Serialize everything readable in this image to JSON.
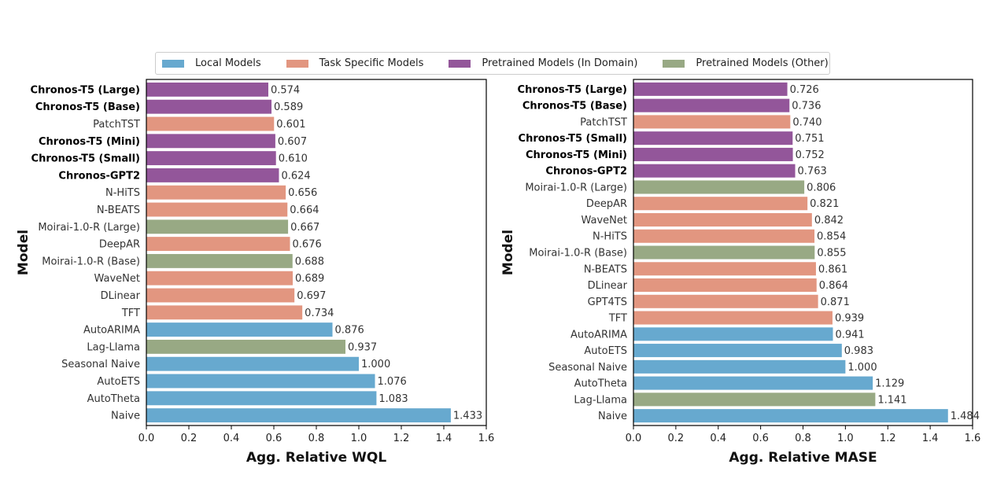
{
  "legend": [
    {
      "label": "Local Models",
      "color": "#67a9cf"
    },
    {
      "label": "Task Specific Models",
      "color": "#e29680"
    },
    {
      "label": "Pretrained Models (In Domain)",
      "color": "#93569a"
    },
    {
      "label": "Pretrained Models (Other)",
      "color": "#98a984"
    }
  ],
  "chart_data": [
    {
      "type": "bar",
      "orientation": "horizontal",
      "xlabel": "Agg. Relative WQL",
      "ylabel": "Model",
      "xlim": [
        0,
        1.6
      ],
      "xticks": [
        "0.0",
        "0.2",
        "0.4",
        "0.6",
        "0.8",
        "1.0",
        "1.2",
        "1.4",
        "1.6"
      ],
      "grid": false,
      "legend_position": "top",
      "categories": [
        "Chronos-T5 (Large)",
        "Chronos-T5 (Base)",
        "PatchTST",
        "Chronos-T5 (Mini)",
        "Chronos-T5 (Small)",
        "Chronos-GPT2",
        "N-HiTS",
        "N-BEATS",
        "Moirai-1.0-R (Large)",
        "DeepAR",
        "Moirai-1.0-R (Base)",
        "WaveNet",
        "DLinear",
        "TFT",
        "AutoARIMA",
        "Lag-Llama",
        "Seasonal Naive",
        "AutoETS",
        "AutoTheta",
        "Naive"
      ],
      "values": [
        0.574,
        0.589,
        0.601,
        0.607,
        0.61,
        0.624,
        0.656,
        0.664,
        0.667,
        0.676,
        0.688,
        0.689,
        0.697,
        0.734,
        0.876,
        0.937,
        1.0,
        1.076,
        1.083,
        1.433
      ],
      "value_labels": [
        "0.574",
        "0.589",
        "0.601",
        "0.607",
        "0.610",
        "0.624",
        "0.656",
        "0.664",
        "0.667",
        "0.676",
        "0.688",
        "0.689",
        "0.697",
        "0.734",
        "0.876",
        "0.937",
        "1.000",
        "1.076",
        "1.083",
        "1.433"
      ],
      "groups": [
        "pre",
        "pre",
        "task",
        "pre",
        "pre",
        "pre",
        "task",
        "task",
        "other",
        "task",
        "other",
        "task",
        "task",
        "task",
        "local",
        "other",
        "local",
        "local",
        "local",
        "local"
      ],
      "bold": [
        true,
        true,
        false,
        true,
        true,
        true,
        false,
        false,
        false,
        false,
        false,
        false,
        false,
        false,
        false,
        false,
        false,
        false,
        false,
        false
      ]
    },
    {
      "type": "bar",
      "orientation": "horizontal",
      "xlabel": "Agg. Relative MASE",
      "ylabel": "Model",
      "xlim": [
        0,
        1.6
      ],
      "xticks": [
        "0.0",
        "0.2",
        "0.4",
        "0.6",
        "0.8",
        "1.0",
        "1.2",
        "1.4",
        "1.6"
      ],
      "grid": false,
      "legend_position": "top",
      "categories": [
        "Chronos-T5 (Large)",
        "Chronos-T5 (Base)",
        "PatchTST",
        "Chronos-T5 (Small)",
        "Chronos-T5 (Mini)",
        "Chronos-GPT2",
        "Moirai-1.0-R (Large)",
        "DeepAR",
        "WaveNet",
        "N-HiTS",
        "Moirai-1.0-R (Base)",
        "N-BEATS",
        "DLinear",
        "GPT4TS",
        "TFT",
        "AutoARIMA",
        "AutoETS",
        "Seasonal Naive",
        "AutoTheta",
        "Lag-Llama",
        "Naive"
      ],
      "values": [
        0.726,
        0.736,
        0.74,
        0.751,
        0.752,
        0.763,
        0.806,
        0.821,
        0.842,
        0.854,
        0.855,
        0.861,
        0.864,
        0.871,
        0.939,
        0.941,
        0.983,
        1.0,
        1.129,
        1.141,
        1.484
      ],
      "value_labels": [
        "0.726",
        "0.736",
        "0.740",
        "0.751",
        "0.752",
        "0.763",
        "0.806",
        "0.821",
        "0.842",
        "0.854",
        "0.855",
        "0.861",
        "0.864",
        "0.871",
        "0.939",
        "0.941",
        "0.983",
        "1.000",
        "1.129",
        "1.141",
        "1.484"
      ],
      "groups": [
        "pre",
        "pre",
        "task",
        "pre",
        "pre",
        "pre",
        "other",
        "task",
        "task",
        "task",
        "other",
        "task",
        "task",
        "task",
        "task",
        "local",
        "local",
        "local",
        "local",
        "other",
        "local"
      ],
      "bold": [
        true,
        true,
        false,
        true,
        true,
        true,
        false,
        false,
        false,
        false,
        false,
        false,
        false,
        false,
        false,
        false,
        false,
        false,
        false,
        false,
        false
      ]
    }
  ],
  "group_colors": {
    "local": "#67a9cf",
    "task": "#e29680",
    "pre": "#93569a",
    "other": "#98a984"
  }
}
